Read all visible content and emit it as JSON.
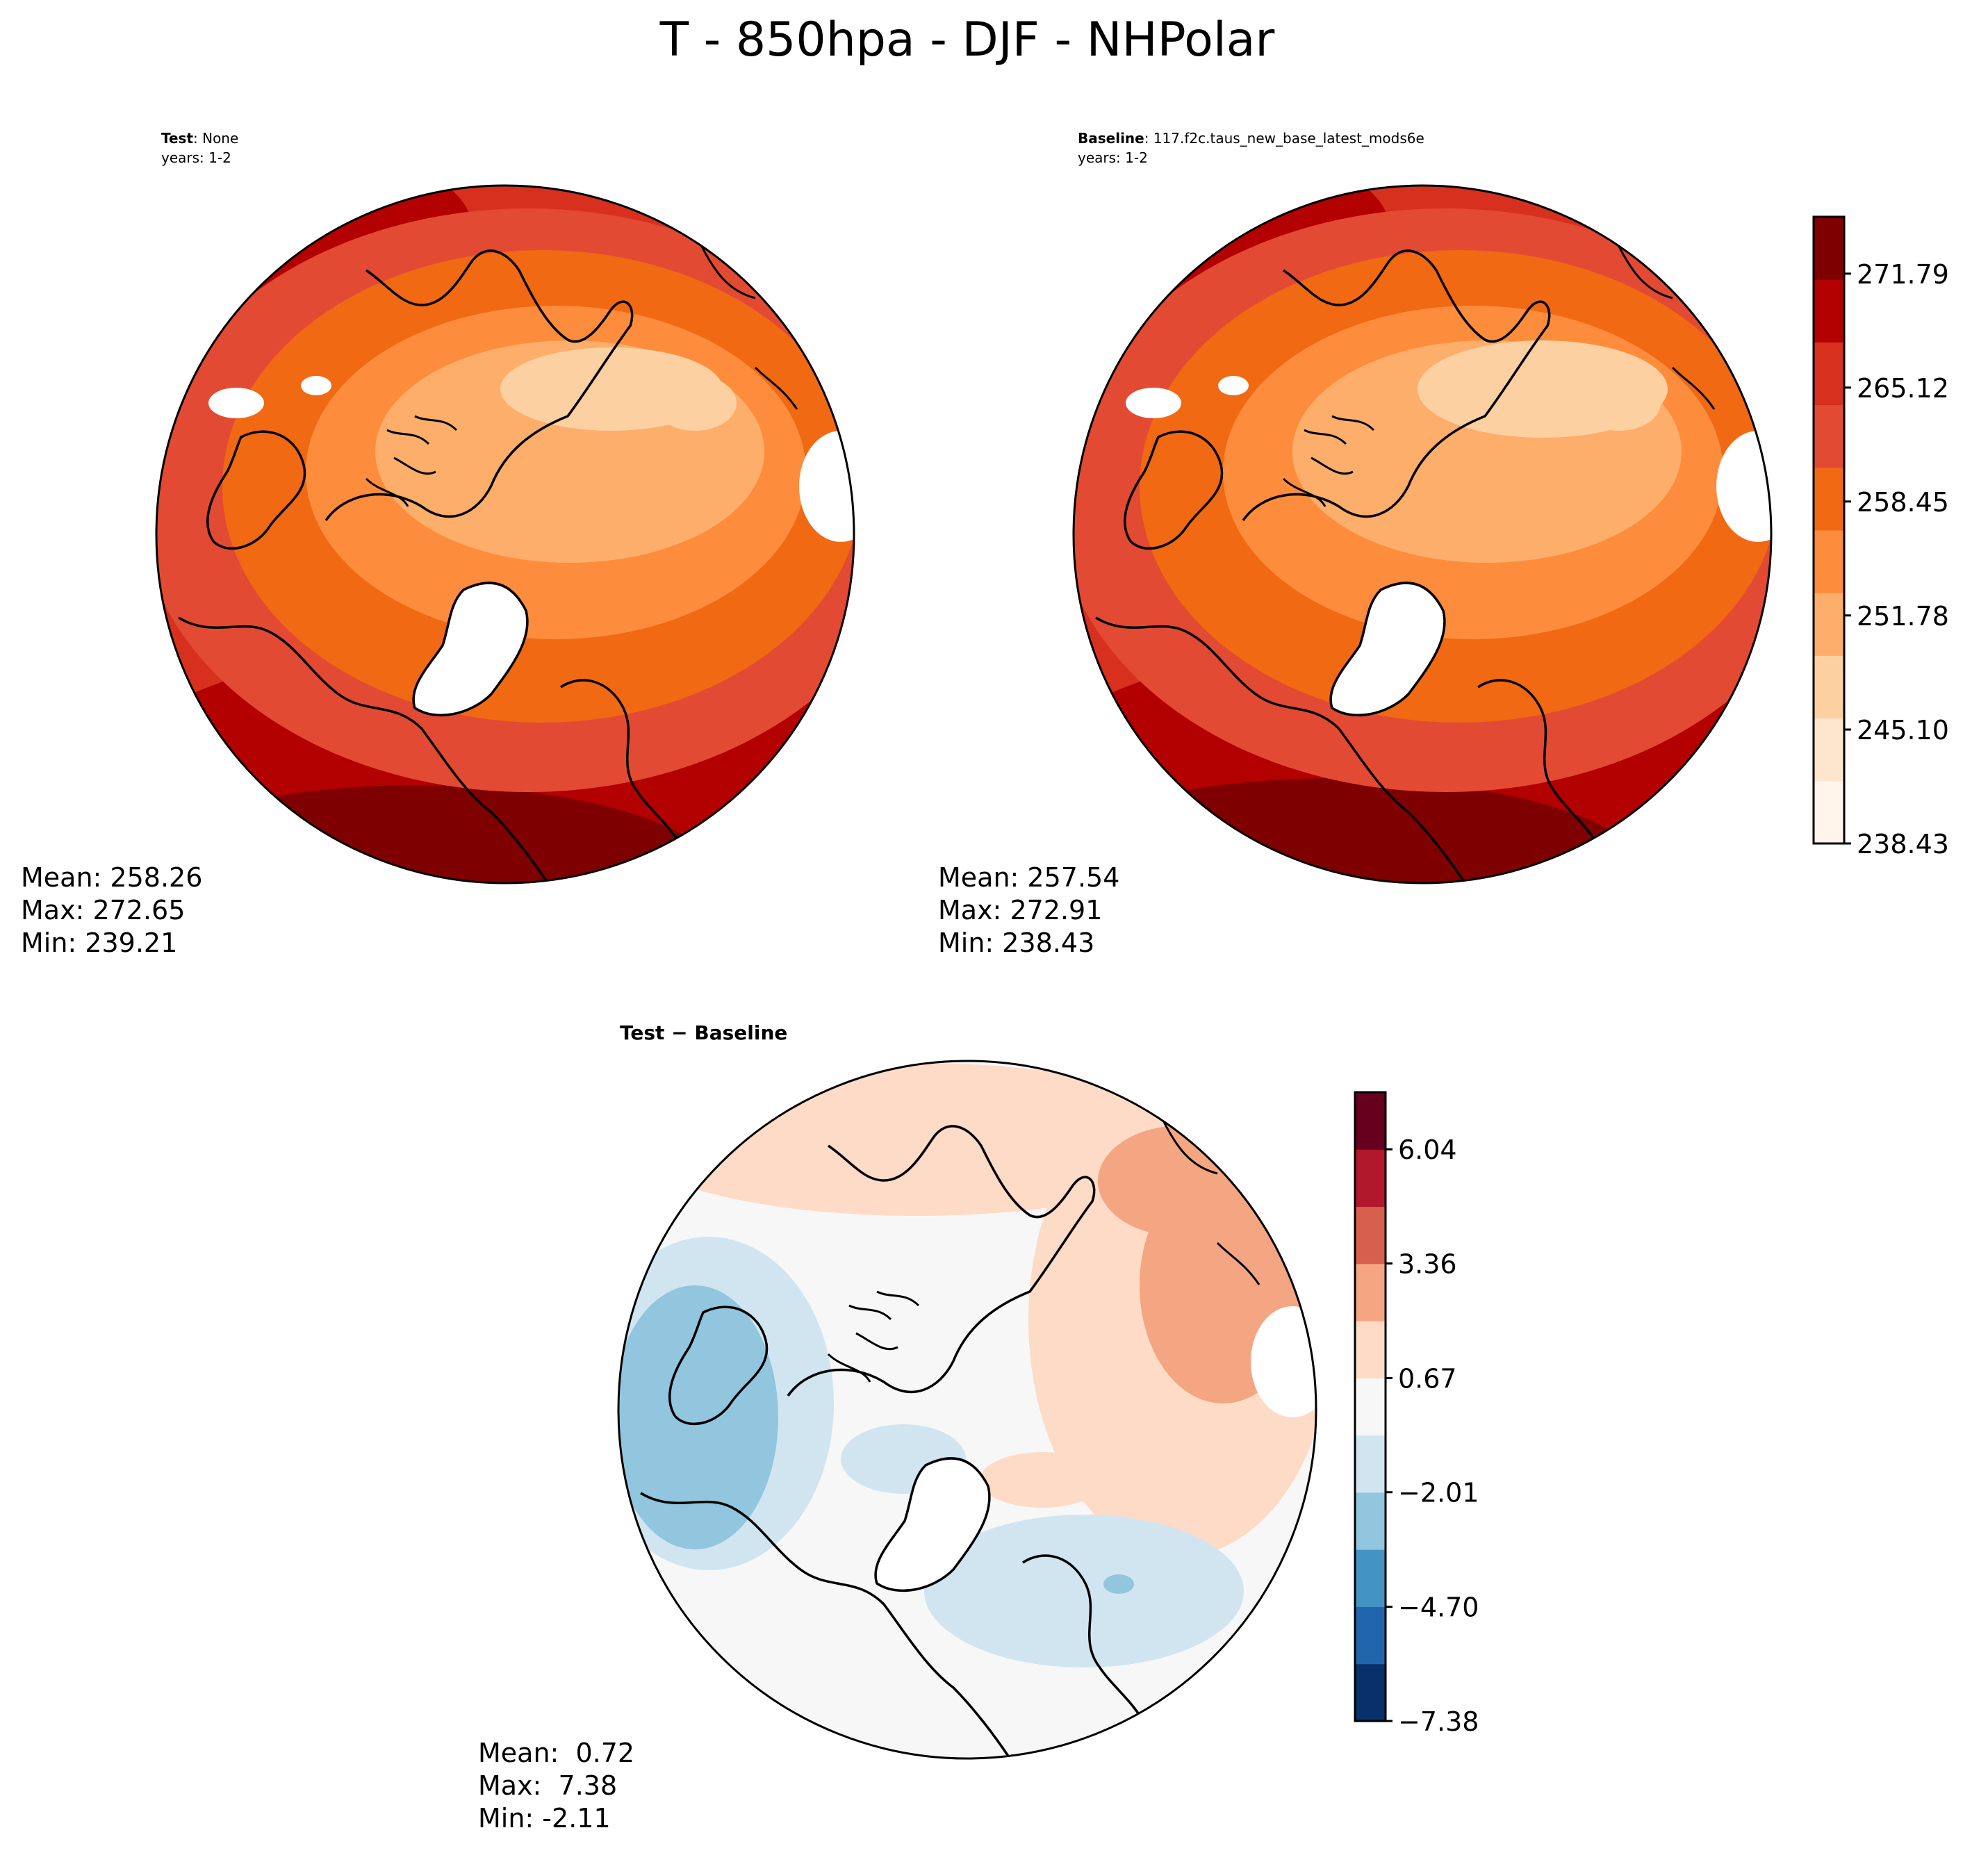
{
  "figure": {
    "title": "T - 850hpa - DJF - NHPolar"
  },
  "chart_data": [
    {
      "type": "heatmap",
      "panel": "test",
      "label_bold": "Test",
      "label_rest": ": None",
      "years": "years: 1-2",
      "stats": {
        "mean": "Mean: 258.26",
        "max": "Max: 272.65",
        "min": "Min: 239.21"
      }
    },
    {
      "type": "heatmap",
      "panel": "baseline",
      "label_bold": "Baseline",
      "label_rest": ": 117.f2c.taus_new_base_latest_mods6e",
      "years": "years: 1-2",
      "stats": {
        "mean": "Mean: 257.54",
        "max": "Max: 272.91",
        "min": "Min: 238.43"
      },
      "colorbar": {
        "range": [
          238.43,
          275.12
        ],
        "ticks": [
          238.43,
          245.1,
          251.78,
          258.45,
          265.12,
          271.79
        ],
        "tick_labels": [
          "238.43",
          "245.10",
          "251.78",
          "258.45",
          "265.12",
          "271.79"
        ],
        "colors": [
          "#fff5eb",
          "#fee6ce",
          "#fdd0a2",
          "#fdae6b",
          "#fd8d3c",
          "#f16913",
          "#e34a33",
          "#d7301f",
          "#b30000",
          "#7f0000"
        ]
      }
    },
    {
      "type": "heatmap",
      "panel": "difference",
      "label": "Test − Baseline",
      "stats": {
        "mean": "Mean:  0.72",
        "max": "Max:  7.38",
        "min": "Min: -2.11"
      },
      "colorbar": {
        "range": [
          -7.38,
          7.38
        ],
        "ticks": [
          -7.38,
          -4.7,
          -2.01,
          0.67,
          3.36,
          6.04
        ],
        "tick_labels": [
          "−7.38",
          "−4.70",
          "−2.01",
          "0.67",
          "3.36",
          "6.04"
        ],
        "colors": [
          "#08306b",
          "#2166ac",
          "#4393c3",
          "#92c5de",
          "#d1e5f0",
          "#f7f7f7",
          "#fddbc7",
          "#f4a582",
          "#d6604d",
          "#b2182b",
          "#67001f"
        ]
      }
    }
  ]
}
